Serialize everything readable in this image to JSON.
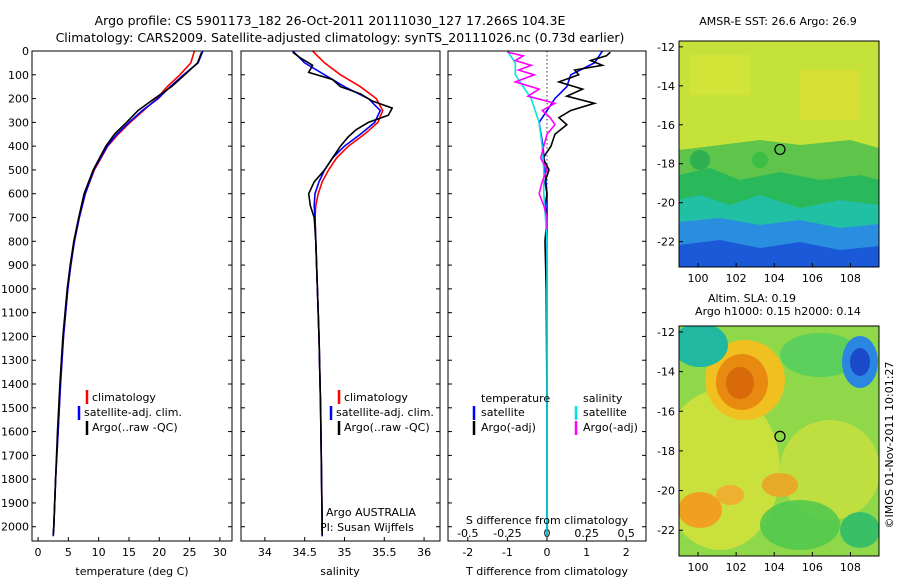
{
  "header": {
    "title_line1": "Argo profile: CS 5901173_182 26-Oct-2011 20111030_127 17.266S 104.3E",
    "title_line2": "Climatology: CARS2009. Satellite-adjusted climatology: synTS_20111026.nc (0.73d earlier)"
  },
  "colors": {
    "climatology": "#ff0000",
    "satellite": "#0000ff",
    "argo": "#000000",
    "sat_diff": "#00e5e5",
    "argo_diff": "#ff00ff"
  },
  "chart_data": [
    {
      "id": "temperature",
      "type": "line",
      "xlabel": "temperature (deg C)",
      "ylabel": "",
      "xlim": [
        -1,
        32
      ],
      "ylim": [
        2060,
        0
      ],
      "x_ticks": [
        0,
        5,
        10,
        15,
        20,
        25,
        30
      ],
      "y_ticks": [
        0,
        100,
        200,
        300,
        400,
        500,
        600,
        700,
        800,
        900,
        1000,
        1100,
        1200,
        1300,
        1400,
        1500,
        1600,
        1700,
        1800,
        1900,
        2000
      ],
      "legend": [
        "climatology",
        "satellite-adj. clim.",
        "Argo(..raw -QC)"
      ],
      "series": [
        {
          "name": "climatology",
          "color": "#ff0000",
          "depth": [
            0,
            50,
            100,
            150,
            200,
            250,
            300,
            350,
            400,
            500,
            600,
            700,
            800,
            900,
            1000,
            1200,
            1400,
            1600,
            1800,
            2000,
            2040
          ],
          "values": [
            25.8,
            25.2,
            23.4,
            21.3,
            19.6,
            17.4,
            15.2,
            13.2,
            11.5,
            9.3,
            7.8,
            6.8,
            6.0,
            5.4,
            4.9,
            4.2,
            3.7,
            3.3,
            2.9,
            2.6,
            2.5
          ]
        },
        {
          "name": "satellite-adj. clim.",
          "color": "#0000ff",
          "depth": [
            0,
            50,
            100,
            150,
            200,
            250,
            300,
            350,
            400,
            500,
            600,
            700,
            800,
            900,
            1000,
            1200,
            1400,
            1600,
            1800,
            2000,
            2040
          ],
          "values": [
            27.2,
            26.4,
            24.0,
            21.8,
            19.8,
            17.2,
            15.0,
            13.0,
            11.4,
            9.2,
            7.8,
            6.8,
            6.0,
            5.4,
            4.9,
            4.2,
            3.7,
            3.3,
            2.9,
            2.6,
            2.5
          ]
        },
        {
          "name": "Argo(..raw -QC)",
          "color": "#000000",
          "depth": [
            5,
            50,
            100,
            150,
            200,
            250,
            300,
            350,
            400,
            500,
            600,
            700,
            800,
            900,
            1000,
            1200,
            1400,
            1600,
            1800,
            2000,
            2035
          ],
          "values": [
            27.0,
            26.3,
            24.2,
            22.0,
            19.2,
            16.5,
            14.6,
            12.6,
            11.2,
            9.1,
            7.6,
            6.7,
            5.9,
            5.3,
            4.8,
            4.1,
            3.6,
            3.2,
            2.9,
            2.6,
            2.5
          ]
        }
      ]
    },
    {
      "id": "salinity",
      "type": "line",
      "xlabel": "salinity",
      "xlim": [
        33.7,
        36.2
      ],
      "ylim": [
        2060,
        0
      ],
      "x_ticks": [
        34,
        34.5,
        35,
        35.5,
        36
      ],
      "legend": [
        "climatology",
        "satellite-adj. clim.",
        "Argo(..raw -QC)"
      ],
      "annotations": [
        "Argo AUSTRALIA",
        "PI: Susan Wijffels"
      ],
      "series": [
        {
          "name": "climatology",
          "color": "#ff0000",
          "depth": [
            0,
            50,
            100,
            150,
            200,
            250,
            300,
            350,
            400,
            450,
            500,
            550,
            600,
            650,
            700,
            800,
            1000,
            1200,
            1500,
            2000,
            2040
          ],
          "values": [
            34.6,
            34.75,
            34.95,
            35.2,
            35.4,
            35.48,
            35.42,
            35.25,
            35.05,
            34.9,
            34.8,
            34.72,
            34.67,
            34.64,
            34.63,
            34.64,
            34.66,
            34.68,
            34.7,
            34.72,
            34.72
          ]
        },
        {
          "name": "satellite-adj. clim.",
          "color": "#0000ff",
          "depth": [
            0,
            50,
            100,
            150,
            200,
            250,
            300,
            350,
            400,
            450,
            500,
            550,
            600,
            650,
            700,
            800,
            1000,
            1200,
            1500,
            2000,
            2040
          ],
          "values": [
            34.35,
            34.5,
            34.75,
            35.0,
            35.3,
            35.45,
            35.38,
            35.2,
            35.0,
            34.85,
            34.75,
            34.68,
            34.63,
            34.62,
            34.63,
            34.64,
            34.66,
            34.68,
            34.7,
            34.72,
            34.72
          ]
        },
        {
          "name": "Argo(..raw -QC)",
          "color": "#000000",
          "depth": [
            5,
            30,
            60,
            90,
            120,
            150,
            180,
            210,
            240,
            270,
            300,
            330,
            360,
            400,
            450,
            500,
            550,
            600,
            650,
            700,
            800,
            1000,
            1200,
            1500,
            2000,
            2035
          ],
          "values": [
            34.35,
            34.45,
            34.6,
            34.55,
            34.85,
            34.95,
            35.2,
            35.35,
            35.6,
            35.55,
            35.3,
            35.15,
            35.05,
            34.95,
            34.85,
            34.75,
            34.62,
            34.55,
            34.57,
            34.62,
            34.64,
            34.66,
            34.68,
            34.7,
            34.72,
            34.72
          ]
        }
      ]
    },
    {
      "id": "difference",
      "type": "line",
      "xlabel": "T difference from climatology",
      "x2label": "S difference from climatology",
      "xlim": [
        -2.5,
        2.5
      ],
      "x2lim": [
        -0.625,
        0.625
      ],
      "ylim": [
        2060,
        0
      ],
      "x_ticks": [
        -2,
        -1,
        0,
        1,
        2
      ],
      "x2_ticks": [
        -0.5,
        -0.25,
        0,
        0.25,
        0.5
      ],
      "legend_temperature": {
        "heading": "temperature",
        "items": [
          "satellite",
          "Argo(-adj)"
        ]
      },
      "legend_salinity": {
        "heading": "salinity",
        "items": [
          "satellite",
          "Argo(-adj)"
        ]
      },
      "series": [
        {
          "name": "T satellite",
          "color": "#0000ff",
          "unit": "T",
          "depth": [
            0,
            50,
            100,
            150,
            200,
            300,
            400,
            500,
            600,
            800,
            1000,
            1500,
            2000,
            2040
          ],
          "values": [
            1.4,
            1.2,
            0.6,
            0.5,
            0.2,
            -0.2,
            -0.1,
            -0.05,
            0,
            0,
            0,
            0,
            0,
            0
          ]
        },
        {
          "name": "T Argo(-adj)",
          "color": "#000000",
          "unit": "T",
          "depth": [
            5,
            20,
            40,
            60,
            80,
            100,
            130,
            160,
            190,
            220,
            250,
            280,
            310,
            350,
            400,
            450,
            500,
            550,
            600,
            650,
            700,
            800,
            1000,
            1500,
            2000,
            2035
          ],
          "values": [
            1.6,
            1.5,
            1.1,
            1.4,
            0.7,
            0.8,
            0.3,
            0.9,
            0.5,
            1.2,
            0.6,
            0.3,
            0.5,
            0.2,
            0.1,
            -0.1,
            0.05,
            -0.05,
            0,
            -0.05,
            0,
            -0.05,
            -0.02,
            0,
            0,
            0
          ]
        },
        {
          "name": "S satellite",
          "color": "#00e5e5",
          "unit": "S",
          "depth": [
            0,
            50,
            100,
            150,
            200,
            300,
            400,
            500,
            600,
            800,
            1000,
            1500,
            2000,
            2040
          ],
          "values": [
            -0.25,
            -0.2,
            -0.2,
            -0.15,
            -0.1,
            -0.05,
            -0.03,
            -0.02,
            -0.02,
            0,
            0,
            0,
            0,
            0
          ]
        },
        {
          "name": "S Argo(-adj)",
          "color": "#ff00ff",
          "unit": "S",
          "depth": [
            5,
            20,
            40,
            60,
            80,
            100,
            130,
            160,
            190,
            220,
            250,
            280,
            310,
            350,
            400,
            450,
            500,
            550,
            600,
            650,
            700,
            750
          ],
          "values": [
            -0.25,
            -0.15,
            -0.2,
            -0.1,
            -0.18,
            -0.08,
            -0.2,
            -0.05,
            -0.12,
            0.05,
            -0.03,
            0.02,
            0.05,
            0,
            -0.02,
            -0.04,
            0,
            -0.03,
            -0.05,
            -0.02,
            0,
            0
          ]
        }
      ]
    },
    {
      "id": "sst_map",
      "type": "heatmap",
      "title": "AMSR-E SST: 26.6  Argo: 26.9",
      "xlim": [
        99,
        109.5
      ],
      "ylim": [
        -23.3,
        -11.7
      ],
      "x_ticks": [
        100,
        102,
        104,
        106,
        108
      ],
      "y_ticks": [
        -12,
        -14,
        -16,
        -18,
        -20,
        -22
      ],
      "marker": {
        "lon": 104.3,
        "lat": -17.266
      }
    },
    {
      "id": "sla_map",
      "type": "heatmap",
      "title_line1": "Altim. SLA: 0.19",
      "title_line2": "Argo h1000: 0.15  h2000: 0.14",
      "xlim": [
        99,
        109.5
      ],
      "ylim": [
        -23.3,
        -11.7
      ],
      "x_ticks": [
        100,
        102,
        104,
        106,
        108
      ],
      "y_ticks": [
        -12,
        -14,
        -16,
        -18,
        -20,
        -22
      ],
      "marker": {
        "lon": 104.3,
        "lat": -17.266
      }
    }
  ],
  "credit": "©IMOS 01-Nov-2011 10:01:27"
}
